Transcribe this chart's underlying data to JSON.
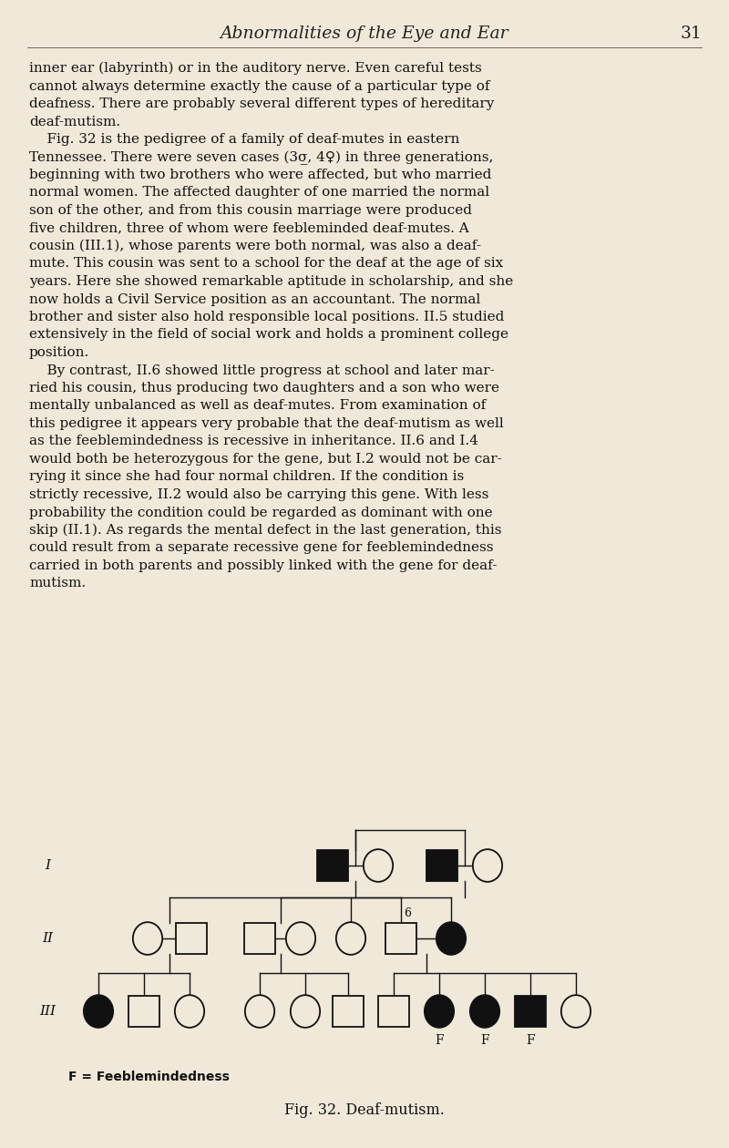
{
  "bg_color": "#f0e8d8",
  "page_title": "Abnormalities of the Eye and Ear",
  "page_number": "31",
  "body_text_lines": [
    "inner ear (labyrinth) or in the auditory nerve. Even careful tests",
    "cannot always determine exactly the cause of a particular type of",
    "deafness. There are probably several different types of hereditary",
    "deaf-mutism.",
    "    Fig. 32 is the pedigree of a family of deaf-mutes in eastern",
    "Tennessee. There were seven cases (3σ̲, 4♀) in three generations,",
    "beginning with two brothers who were affected, but who married",
    "normal women. The affected daughter of one married the normal",
    "son of the other, and from this cousin marriage were produced",
    "five children, three of whom were feebleminded deaf-mutes. A",
    "cousin (III.1), whose parents were both normal, was also a deaf-",
    "mute. This cousin was sent to a school for the deaf at the age of six",
    "years. Here she showed remarkable aptitude in scholarship, and she",
    "now holds a Civil Service position as an accountant. The normal",
    "brother and sister also hold responsible local positions. II.5 studied",
    "extensively in the field of social work and holds a prominent college",
    "position.",
    "    By contrast, II.6 showed little progress at school and later mar-",
    "ried his cousin, thus producing two daughters and a son who were",
    "mentally unbalanced as well as deaf-mutes. From examination of",
    "this pedigree it appears very probable that the deaf-mutism as well",
    "as the feeblemindedness is recessive in inheritance. II.6 and I.4",
    "would both be heterozygous for the gene, but I.2 would not be car-",
    "rying it since she had four normal children. If the condition is",
    "strictly recessive, II.2 would also be carrying this gene. With less",
    "probability the condition could be regarded as dominant with one",
    "skip (II.1). As regards the mental defect in the last generation, this",
    "could result from a separate recessive gene for feeblemindedness",
    "carried in both parents and possibly linked with the gene for deaf-",
    "mutism."
  ],
  "caption": "Fig. 32. Deaf-mutism.",
  "legend_text": "F = Feeblemindedness",
  "line_color": "#111111",
  "fill_affected": "#111111",
  "fill_normal": "#f0e8d8",
  "gen_labels": [
    "I",
    "II",
    "III"
  ]
}
